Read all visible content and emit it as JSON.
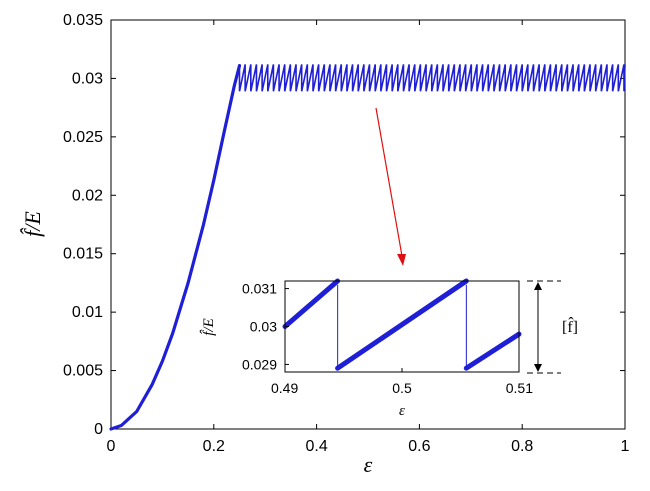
{
  "chart_data": [
    {
      "type": "line",
      "xlabel": "ε",
      "ylabel": "f̂/E",
      "xlim": [
        0,
        1
      ],
      "ylim": [
        0,
        0.035
      ],
      "xticks": [
        0,
        0.2,
        0.4,
        0.6,
        0.8,
        1
      ],
      "yticks": [
        0,
        0.005,
        0.01,
        0.015,
        0.02,
        0.025,
        0.03,
        0.035
      ],
      "xtick_labels": [
        "0",
        "0.2",
        "0.4",
        "0.6",
        "0.8",
        "1"
      ],
      "ytick_labels": [
        "0",
        "0.005",
        "0.01",
        "0.015",
        "0.02",
        "0.025",
        "0.03",
        "0.035"
      ],
      "grid": false,
      "series_color": "#1f1fd6",
      "series": [
        {
          "x": [
            0,
            0.02,
            0.05,
            0.08,
            0.1,
            0.12,
            0.15,
            0.18,
            0.2,
            0.22,
            0.24,
            0.25
          ],
          "y": [
            0,
            0.0003,
            0.0015,
            0.0038,
            0.0058,
            0.0082,
            0.0125,
            0.0175,
            0.0213,
            0.0254,
            0.0294,
            0.0311
          ]
        }
      ],
      "sawtooth_plateau": {
        "x_start": 0.25,
        "x_end": 1.0,
        "y_min": 0.0289,
        "y_max": 0.0312,
        "period": 0.011
      }
    },
    {
      "type": "line",
      "xlabel": "ε",
      "ylabel": "f̂/E",
      "xlim": [
        0.49,
        0.51
      ],
      "ylim": [
        0.0288,
        0.0312
      ],
      "xtick_labels": [
        "0.49",
        "0.5",
        "0.51"
      ],
      "xticks": [
        0.49,
        0.5,
        0.51
      ],
      "ytick_labels": [
        "0.029",
        "0.03",
        "0.031"
      ],
      "yticks": [
        0.029,
        0.03,
        0.031
      ],
      "series_color": "#1f1fd6",
      "segments": [
        {
          "x": [
            0.49,
            0.4945
          ],
          "y": [
            0.03,
            0.0312
          ]
        },
        {
          "x": [
            0.4945,
            0.5055
          ],
          "y": [
            0.0289,
            0.0312
          ]
        },
        {
          "x": [
            0.5055,
            0.51
          ],
          "y": [
            0.0289,
            0.0298
          ]
        }
      ],
      "drops": [
        0.4945,
        0.5055
      ]
    }
  ],
  "annotation": {
    "bracket_label": "[f̂]",
    "arrow_color": "#e01010"
  }
}
